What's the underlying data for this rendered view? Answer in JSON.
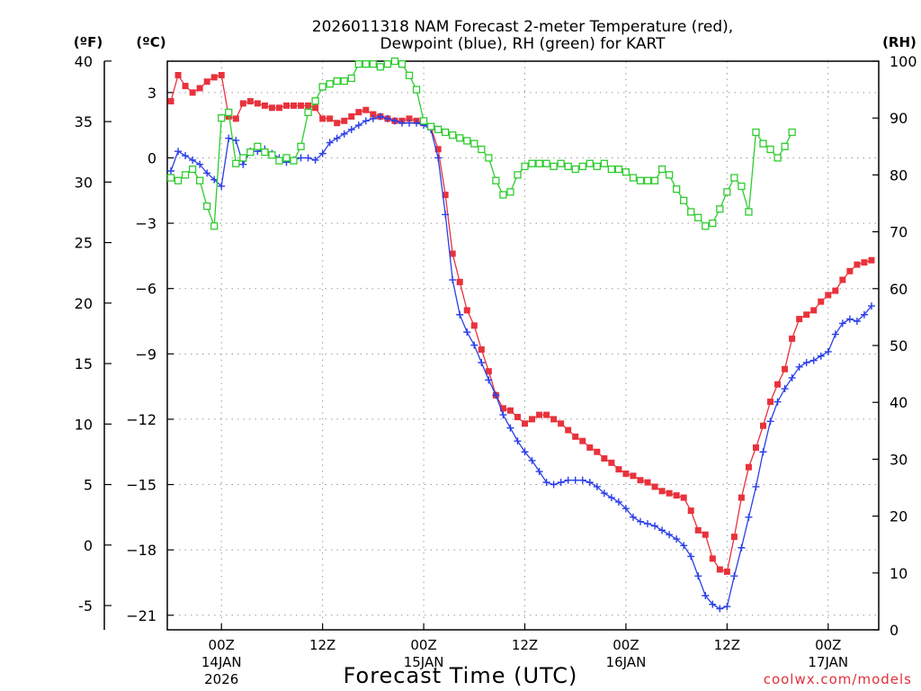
{
  "chart_data": {
    "type": "line",
    "title_line1": "2026011318 NAM Forecast 2-meter Temperature (red),",
    "title_line2": "Dewpoint (blue), RH (green) for KART",
    "xlabel": "Forecast Time (UTC)",
    "credit": "coolwx.com/models",
    "unit_labels": {
      "fahrenheit": "(ºF)",
      "celsius": "(ºC)",
      "rh": "(RH)"
    },
    "x_hour_range": [
      -7.5,
      91
    ],
    "temp_c_range": [
      -21.67,
      4.44
    ],
    "rh_range": [
      0,
      100
    ],
    "fahrenheit_ticks": [
      40,
      35,
      30,
      25,
      20,
      15,
      10,
      5,
      0,
      -5
    ],
    "celsius_ticks": [
      3,
      0,
      -3,
      -6,
      -9,
      -12,
      -15,
      -18,
      -21
    ],
    "rh_ticks": [
      100,
      90,
      80,
      70,
      60,
      50,
      40,
      30,
      20,
      10,
      0
    ],
    "x_ticks": [
      {
        "hour": 0,
        "label": "00Z",
        "date": "14JAN",
        "year": "2026"
      },
      {
        "hour": 14,
        "label": "12Z",
        "date": "",
        "year": ""
      },
      {
        "hour": 28,
        "label": "00Z",
        "date": "15JAN",
        "year": ""
      },
      {
        "hour": 42,
        "label": "12Z",
        "date": "",
        "year": ""
      },
      {
        "hour": 56,
        "label": "00Z",
        "date": "16JAN",
        "year": ""
      },
      {
        "hour": 70,
        "label": "12Z",
        "date": "",
        "year": ""
      },
      {
        "hour": 84,
        "label": "00Z",
        "date": "17JAN",
        "year": ""
      }
    ],
    "series": [
      {
        "name": "Temperature (red)",
        "units": "C",
        "color": "#e8323c",
        "marker": "filled-square",
        "points": [
          [
            -7,
            2.6
          ],
          [
            -6,
            3.8
          ],
          [
            -5,
            3.3
          ],
          [
            -4,
            3.0
          ],
          [
            -3,
            3.2
          ],
          [
            -2,
            3.5
          ],
          [
            -1,
            3.7
          ],
          [
            0,
            3.8
          ],
          [
            1,
            1.9
          ],
          [
            2,
            1.8
          ],
          [
            3,
            2.5
          ],
          [
            4,
            2.6
          ],
          [
            5,
            2.5
          ],
          [
            6,
            2.4
          ],
          [
            7,
            2.3
          ],
          [
            8,
            2.3
          ],
          [
            9,
            2.4
          ],
          [
            10,
            2.4
          ],
          [
            11,
            2.4
          ],
          [
            12,
            2.4
          ],
          [
            13,
            2.3
          ],
          [
            14,
            1.8
          ],
          [
            15,
            1.8
          ],
          [
            16,
            1.6
          ],
          [
            17,
            1.7
          ],
          [
            18,
            1.9
          ],
          [
            19,
            2.1
          ],
          [
            20,
            2.2
          ],
          [
            21,
            2.0
          ],
          [
            22,
            1.9
          ],
          [
            23,
            1.8
          ],
          [
            24,
            1.7
          ],
          [
            25,
            1.7
          ],
          [
            26,
            1.8
          ],
          [
            27,
            1.7
          ],
          [
            28,
            1.6
          ],
          [
            29,
            1.4
          ],
          [
            30,
            0.4
          ],
          [
            31,
            -1.7
          ],
          [
            32,
            -4.4
          ],
          [
            33,
            -5.7
          ],
          [
            34,
            -7.0
          ],
          [
            35,
            -7.7
          ],
          [
            36,
            -8.8
          ],
          [
            37,
            -9.8
          ],
          [
            38,
            -10.9
          ],
          [
            39,
            -11.5
          ],
          [
            40,
            -11.6
          ],
          [
            41,
            -11.9
          ],
          [
            42,
            -12.2
          ],
          [
            43,
            -12.0
          ],
          [
            44,
            -11.8
          ],
          [
            45,
            -11.8
          ],
          [
            46,
            -12.0
          ],
          [
            47,
            -12.2
          ],
          [
            48,
            -12.5
          ],
          [
            49,
            -12.8
          ],
          [
            50,
            -13.0
          ],
          [
            51,
            -13.3
          ],
          [
            52,
            -13.5
          ],
          [
            53,
            -13.8
          ],
          [
            54,
            -14.0
          ],
          [
            55,
            -14.3
          ],
          [
            56,
            -14.5
          ],
          [
            57,
            -14.6
          ],
          [
            58,
            -14.8
          ],
          [
            59,
            -14.9
          ],
          [
            60,
            -15.1
          ],
          [
            61,
            -15.3
          ],
          [
            62,
            -15.4
          ],
          [
            63,
            -15.5
          ],
          [
            64,
            -15.6
          ],
          [
            65,
            -16.2
          ],
          [
            66,
            -17.1
          ],
          [
            67,
            -17.3
          ],
          [
            68,
            -18.4
          ],
          [
            69,
            -18.9
          ],
          [
            70,
            -19.0
          ],
          [
            71,
            -17.4
          ],
          [
            72,
            -15.6
          ],
          [
            73,
            -14.2
          ],
          [
            74,
            -13.3
          ],
          [
            75,
            -12.3
          ],
          [
            76,
            -11.2
          ],
          [
            77,
            -10.4
          ],
          [
            78,
            -9.7
          ],
          [
            79,
            -8.3
          ],
          [
            80,
            -7.4
          ],
          [
            81,
            -7.2
          ],
          [
            82,
            -7.0
          ],
          [
            83,
            -6.6
          ],
          [
            84,
            -6.3
          ],
          [
            85,
            -6.1
          ],
          [
            86,
            -5.6
          ],
          [
            87,
            -5.2
          ],
          [
            88,
            -4.9
          ],
          [
            89,
            -4.8
          ],
          [
            90,
            -4.7
          ]
        ]
      },
      {
        "name": "Dewpoint (blue)",
        "units": "C",
        "color": "#2b3fe8",
        "marker": "plus",
        "points": [
          [
            -7,
            -0.6
          ],
          [
            -6,
            0.3
          ],
          [
            -5,
            0.1
          ],
          [
            -4,
            -0.1
          ],
          [
            -3,
            -0.3
          ],
          [
            -2,
            -0.7
          ],
          [
            -1,
            -1.0
          ],
          [
            0,
            -1.3
          ],
          [
            1,
            0.9
          ],
          [
            2,
            0.8
          ],
          [
            3,
            -0.3
          ],
          [
            4,
            0.3
          ],
          [
            5,
            0.3
          ],
          [
            6,
            0.4
          ],
          [
            7,
            0.2
          ],
          [
            8,
            0.0
          ],
          [
            9,
            -0.2
          ],
          [
            10,
            -0.1
          ],
          [
            11,
            0.0
          ],
          [
            12,
            0.0
          ],
          [
            13,
            -0.1
          ],
          [
            14,
            0.2
          ],
          [
            15,
            0.7
          ],
          [
            16,
            0.9
          ],
          [
            17,
            1.1
          ],
          [
            18,
            1.3
          ],
          [
            19,
            1.5
          ],
          [
            20,
            1.7
          ],
          [
            21,
            1.8
          ],
          [
            22,
            1.9
          ],
          [
            23,
            1.8
          ],
          [
            24,
            1.7
          ],
          [
            25,
            1.6
          ],
          [
            26,
            1.6
          ],
          [
            27,
            1.6
          ],
          [
            28,
            1.5
          ],
          [
            29,
            1.3
          ],
          [
            30,
            0.0
          ],
          [
            31,
            -2.6
          ],
          [
            32,
            -5.6
          ],
          [
            33,
            -7.2
          ],
          [
            34,
            -8.0
          ],
          [
            35,
            -8.6
          ],
          [
            36,
            -9.4
          ],
          [
            37,
            -10.2
          ],
          [
            38,
            -10.9
          ],
          [
            39,
            -11.8
          ],
          [
            40,
            -12.4
          ],
          [
            41,
            -13.0
          ],
          [
            42,
            -13.5
          ],
          [
            43,
            -13.9
          ],
          [
            44,
            -14.4
          ],
          [
            45,
            -14.9
          ],
          [
            46,
            -15.0
          ],
          [
            47,
            -14.9
          ],
          [
            48,
            -14.8
          ],
          [
            49,
            -14.8
          ],
          [
            50,
            -14.8
          ],
          [
            51,
            -14.9
          ],
          [
            52,
            -15.1
          ],
          [
            53,
            -15.4
          ],
          [
            54,
            -15.6
          ],
          [
            55,
            -15.8
          ],
          [
            56,
            -16.1
          ],
          [
            57,
            -16.5
          ],
          [
            58,
            -16.7
          ],
          [
            59,
            -16.8
          ],
          [
            60,
            -16.9
          ],
          [
            61,
            -17.1
          ],
          [
            62,
            -17.3
          ],
          [
            63,
            -17.5
          ],
          [
            64,
            -17.8
          ],
          [
            65,
            -18.3
          ],
          [
            66,
            -19.2
          ],
          [
            67,
            -20.1
          ],
          [
            68,
            -20.5
          ],
          [
            69,
            -20.7
          ],
          [
            70,
            -20.6
          ],
          [
            71,
            -19.2
          ],
          [
            72,
            -17.9
          ],
          [
            73,
            -16.5
          ],
          [
            74,
            -15.1
          ],
          [
            75,
            -13.5
          ],
          [
            76,
            -12.1
          ],
          [
            77,
            -11.2
          ],
          [
            78,
            -10.6
          ],
          [
            79,
            -10.1
          ],
          [
            80,
            -9.6
          ],
          [
            81,
            -9.4
          ],
          [
            82,
            -9.3
          ],
          [
            83,
            -9.1
          ],
          [
            84,
            -8.9
          ],
          [
            85,
            -8.1
          ],
          [
            86,
            -7.6
          ],
          [
            87,
            -7.4
          ],
          [
            88,
            -7.5
          ],
          [
            89,
            -7.2
          ],
          [
            90,
            -6.8
          ]
        ]
      },
      {
        "name": "RH (green)",
        "units": "%",
        "color": "#2ecc2e",
        "marker": "open-square",
        "points": [
          [
            -7,
            79.5
          ],
          [
            -6,
            79
          ],
          [
            -5,
            80
          ],
          [
            -4,
            81
          ],
          [
            -3,
            79
          ],
          [
            -2,
            74.5
          ],
          [
            -1,
            71
          ],
          [
            0,
            90
          ],
          [
            1,
            91
          ],
          [
            2,
            82
          ],
          [
            3,
            83
          ],
          [
            4,
            84
          ],
          [
            5,
            85
          ],
          [
            6,
            84
          ],
          [
            7,
            83.5
          ],
          [
            8,
            82.5
          ],
          [
            9,
            83
          ],
          [
            10,
            82.5
          ],
          [
            11,
            85
          ],
          [
            12,
            91
          ],
          [
            13,
            93
          ],
          [
            14,
            95.5
          ],
          [
            15,
            96
          ],
          [
            16,
            96.5
          ],
          [
            17,
            96.5
          ],
          [
            18,
            97
          ],
          [
            19,
            99.5
          ],
          [
            20,
            99.5
          ],
          [
            21,
            99.5
          ],
          [
            22,
            99
          ],
          [
            23,
            99.5
          ],
          [
            24,
            100
          ],
          [
            25,
            99.5
          ],
          [
            26,
            97.5
          ],
          [
            27,
            95
          ],
          [
            28,
            89.5
          ],
          [
            29,
            88.5
          ],
          [
            30,
            88
          ],
          [
            31,
            87.5
          ],
          [
            32,
            87
          ],
          [
            33,
            86.5
          ],
          [
            34,
            86
          ],
          [
            35,
            85.5
          ],
          [
            36,
            84.5
          ],
          [
            37,
            83
          ],
          [
            38,
            79
          ],
          [
            39,
            76.5
          ],
          [
            40,
            77
          ],
          [
            41,
            80
          ],
          [
            42,
            81.5
          ],
          [
            43,
            82
          ],
          [
            44,
            82
          ],
          [
            45,
            82
          ],
          [
            46,
            81.5
          ],
          [
            47,
            82
          ],
          [
            48,
            81.5
          ],
          [
            49,
            81
          ],
          [
            50,
            81.5
          ],
          [
            51,
            82
          ],
          [
            52,
            81.5
          ],
          [
            53,
            82
          ],
          [
            54,
            81
          ],
          [
            55,
            81
          ],
          [
            56,
            80.5
          ],
          [
            57,
            79.5
          ],
          [
            58,
            79
          ],
          [
            59,
            79
          ],
          [
            60,
            79
          ],
          [
            61,
            81
          ],
          [
            62,
            80
          ],
          [
            63,
            77.5
          ],
          [
            64,
            75.5
          ],
          [
            65,
            73.5
          ],
          [
            66,
            72.5
          ],
          [
            67,
            71
          ],
          [
            68,
            71.5
          ],
          [
            69,
            74
          ],
          [
            70,
            77
          ],
          [
            71,
            79.5
          ],
          [
            72,
            78
          ],
          [
            73,
            73.5
          ],
          [
            74,
            87.5
          ],
          [
            75,
            85.5
          ],
          [
            76,
            84.5
          ],
          [
            77,
            83
          ],
          [
            78,
            85
          ],
          [
            79,
            87.5
          ]
        ]
      }
    ]
  }
}
